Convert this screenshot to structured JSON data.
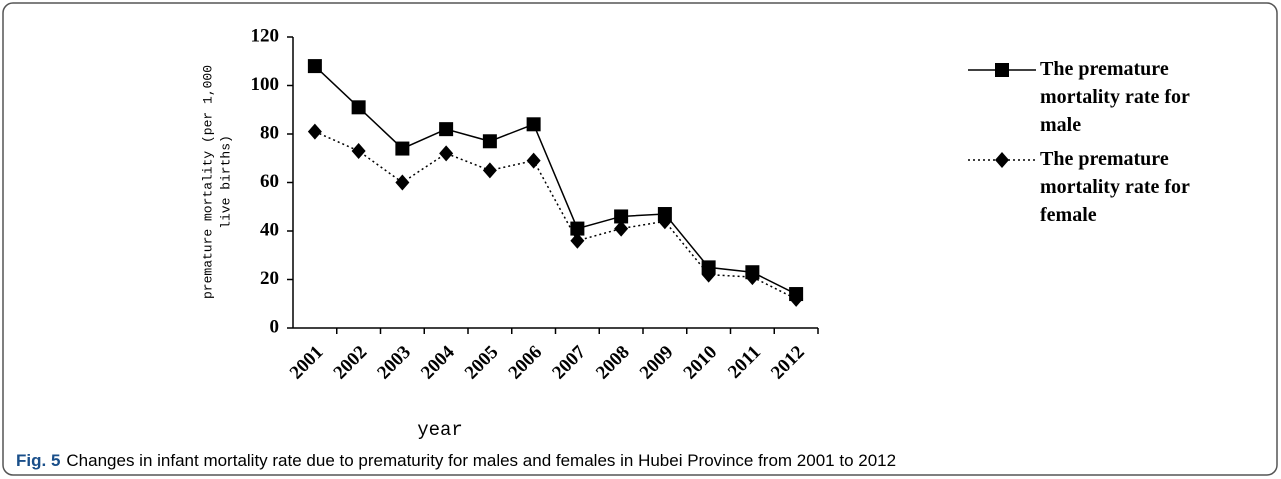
{
  "chart_data": {
    "type": "line",
    "ylabel_lines": [
      "premature mortality (per 1,000",
      "live births)"
    ],
    "xlabel": "year",
    "categories": [
      "2001",
      "2002",
      "2003",
      "2004",
      "2005",
      "2006",
      "2007",
      "2008",
      "2009",
      "2010",
      "2011",
      "2012"
    ],
    "series": [
      {
        "name": "The premature mortality rate for male",
        "color": "#000000",
        "line": "solid",
        "marker": "square",
        "values": [
          108,
          91,
          74,
          82,
          77,
          84,
          41,
          46,
          47,
          25,
          23,
          14
        ]
      },
      {
        "name": "The premature mortality rate for female",
        "color": "#000000",
        "line": "dotted",
        "marker": "diamond",
        "values": [
          81,
          73,
          60,
          72,
          65,
          69,
          36,
          41,
          44,
          22,
          21,
          12
        ]
      }
    ],
    "ylim": [
      0,
      120
    ],
    "yticks": [
      0,
      20,
      40,
      60,
      80,
      100,
      120
    ],
    "grid": false,
    "legend": "right"
  },
  "caption": {
    "label": "Fig. 5",
    "text": "Changes in infant mortality rate due to prematurity for males and females in Hubei Province from 2001 to 2012"
  }
}
